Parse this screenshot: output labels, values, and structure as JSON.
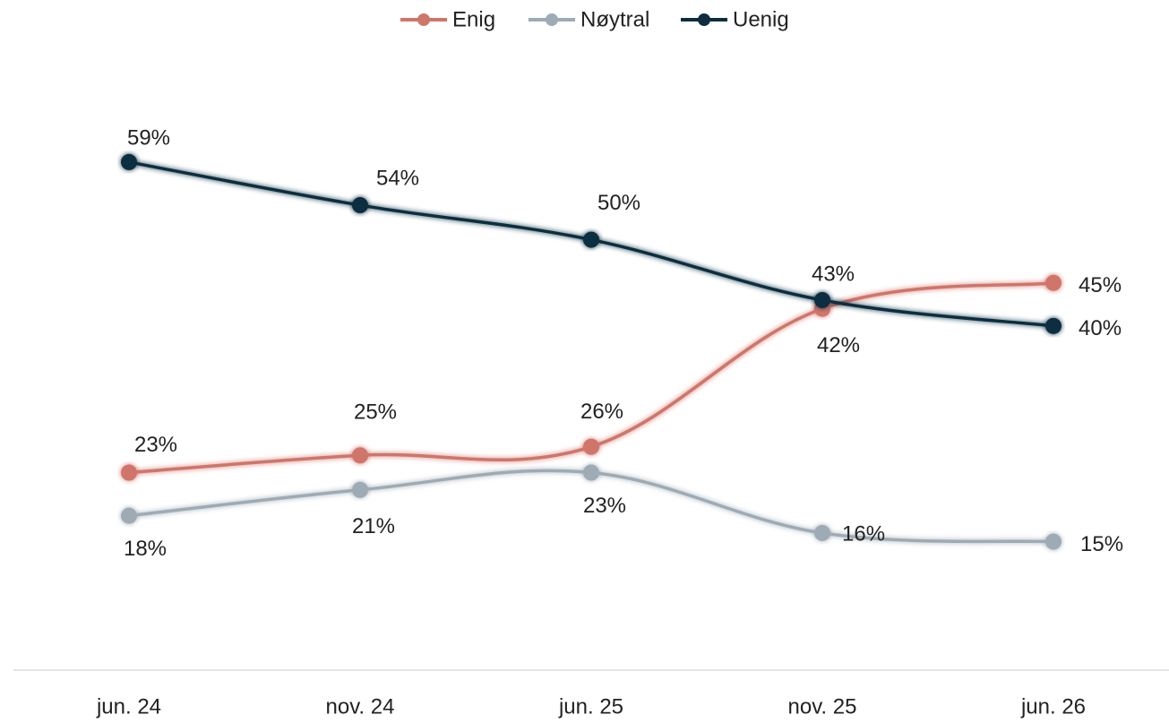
{
  "chart_data": {
    "type": "line",
    "categories": [
      "jun. 24",
      "nov. 24",
      "jun. 25",
      "nov. 25",
      "jun. 26"
    ],
    "series": [
      {
        "name": "Enig",
        "color": "#d0756a",
        "values": [
          23,
          25,
          26,
          42,
          45
        ],
        "value_labels": [
          "23%",
          "25%",
          "26%",
          "42%",
          "45%"
        ]
      },
      {
        "name": "Nøytral",
        "color": "#9eabb5",
        "values": [
          18,
          21,
          23,
          16,
          15
        ],
        "value_labels": [
          "18%",
          "21%",
          "23%",
          "16%",
          "15%"
        ]
      },
      {
        "name": "Uenig",
        "color": "#0d2d3f",
        "values": [
          59,
          54,
          50,
          43,
          40
        ],
        "value_labels": [
          "59%",
          "54%",
          "50%",
          "43%",
          "40%"
        ]
      }
    ],
    "ylim": [
      0,
      70
    ],
    "legend": "top"
  }
}
